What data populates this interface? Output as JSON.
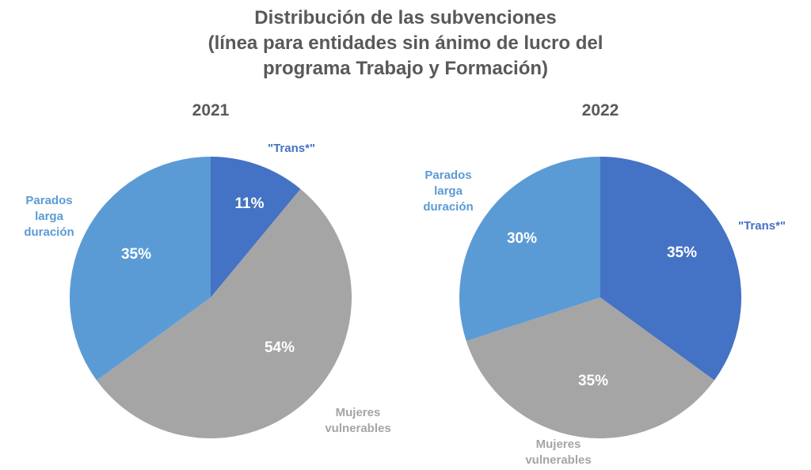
{
  "title_lines": [
    "Distribución de las subvenciones",
    "(línea para entidades sin ánimo de lucro del",
    "programa Trabajo y Formación)"
  ],
  "chart_data": [
    {
      "type": "pie",
      "title": "2021",
      "slices": [
        {
          "label": "\"Trans*\"",
          "value": 11,
          "value_label": "11%",
          "color": "#4472C4"
        },
        {
          "label": "Mujeres vulnerables",
          "value": 54,
          "value_label": "54%",
          "color": "#A5A5A5"
        },
        {
          "label": "Parados larga duración",
          "value": 35,
          "value_label": "35%",
          "color": "#5B9BD5"
        }
      ]
    },
    {
      "type": "pie",
      "title": "2022",
      "slices": [
        {
          "label": "\"Trans*\"",
          "value": 35,
          "value_label": "35%",
          "color": "#4472C4"
        },
        {
          "label": "Mujeres vulnerables",
          "value": 35,
          "value_label": "35%",
          "color": "#A5A5A5"
        },
        {
          "label": "Parados larga duración",
          "value": 30,
          "value_label": "30%",
          "color": "#5B9BD5"
        }
      ]
    }
  ]
}
